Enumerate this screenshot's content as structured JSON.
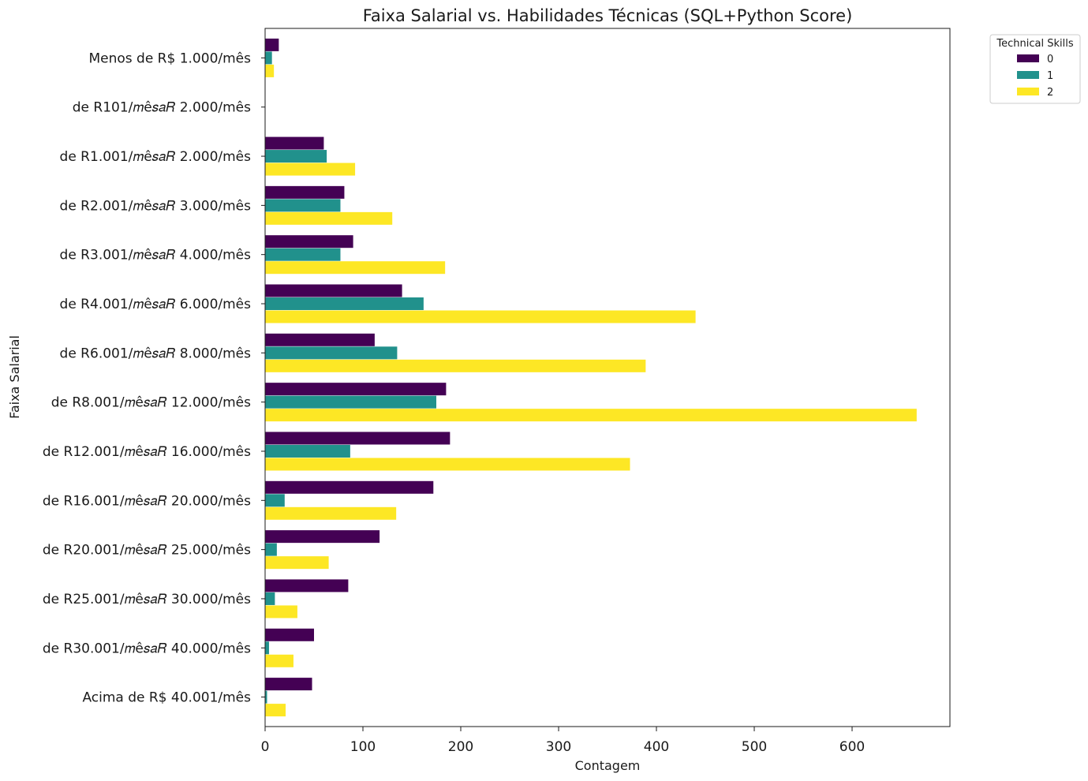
{
  "chart_data": {
    "type": "bar",
    "orientation": "horizontal",
    "title": "Faixa Salarial vs. Habilidades Técnicas (SQL+Python Score)",
    "xlabel": "Contagem",
    "ylabel": "Faixa Salarial",
    "xlim": [
      0,
      700
    ],
    "xticks": [
      0,
      100,
      200,
      300,
      400,
      500,
      600
    ],
    "grid": false,
    "categories": [
      "Menos de R$ 1.000/mês",
      "de R101/𝑚ê𝑠𝑎𝑅 2.000/mês",
      "de R1.001/𝑚ê𝑠𝑎𝑅 2.000/mês",
      "de R2.001/𝑚ê𝑠𝑎𝑅 3.000/mês",
      "de R3.001/𝑚ê𝑠𝑎𝑅 4.000/mês",
      "de R4.001/𝑚ê𝑠𝑎𝑅 6.000/mês",
      "de R6.001/𝑚ê𝑠𝑎𝑅 8.000/mês",
      "de R8.001/𝑚ê𝑠𝑎𝑅 12.000/mês",
      "de R12.001/𝑚ê𝑠𝑎𝑅 16.000/mês",
      "de R16.001/𝑚ê𝑠𝑎𝑅 20.000/mês",
      "de R20.001/𝑚ê𝑠𝑎𝑅 25.000/mês",
      "de R25.001/𝑚ê𝑠𝑎𝑅 30.000/mês",
      "de R30.001/𝑚ê𝑠𝑎𝑅 40.000/mês",
      "Acima de R$ 40.001/mês"
    ],
    "legend": {
      "title": "Technical Skills",
      "position": "outside-top-right"
    },
    "series": [
      {
        "name": "0",
        "color": "#440154",
        "values": [
          14,
          0,
          60,
          81,
          90,
          140,
          112,
          185,
          189,
          172,
          117,
          85,
          50,
          48
        ]
      },
      {
        "name": "1",
        "color": "#21918c",
        "values": [
          7,
          0,
          63,
          77,
          77,
          162,
          135,
          175,
          87,
          20,
          12,
          10,
          4,
          2
        ]
      },
      {
        "name": "2",
        "color": "#fde725",
        "values": [
          9,
          0,
          92,
          130,
          184,
          440,
          389,
          666,
          373,
          134,
          65,
          33,
          29,
          21
        ]
      }
    ]
  }
}
